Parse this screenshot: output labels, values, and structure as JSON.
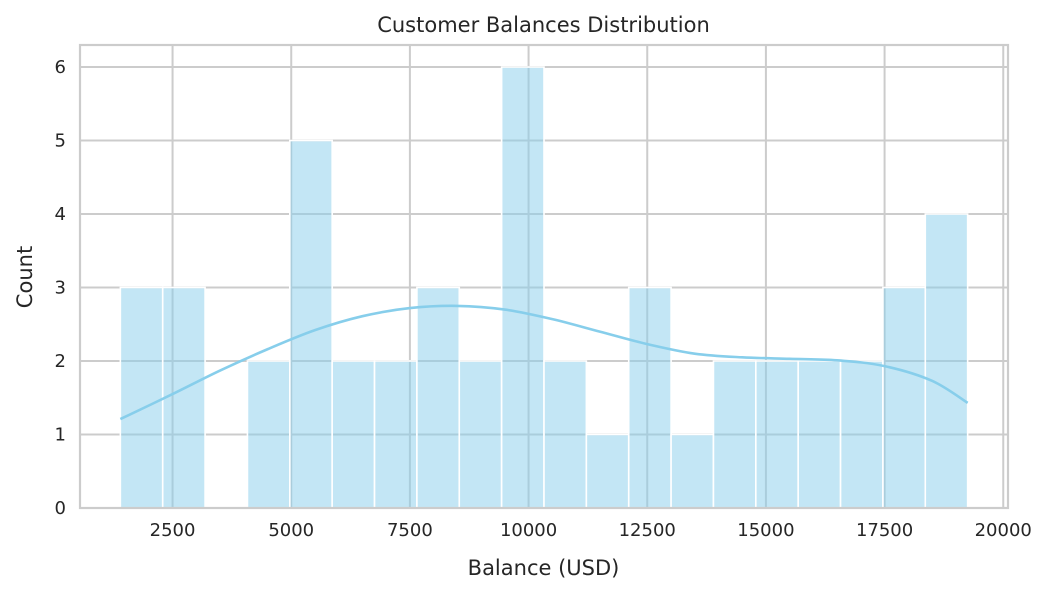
{
  "chart_data": {
    "type": "bar",
    "title": "Customer Balances Distribution",
    "xlabel": "Balance (USD)",
    "ylabel": "Count",
    "xlim": [
      550,
      20100
    ],
    "ylim": [
      0,
      6.3
    ],
    "x_ticks": [
      2500,
      5000,
      7500,
      10000,
      12500,
      15000,
      17500,
      20000
    ],
    "y_ticks": [
      0,
      1,
      2,
      3,
      4,
      5,
      6
    ],
    "grid": true,
    "bin_edges": [
      1400,
      2292.5,
      3185,
      4077.5,
      4970,
      5862.5,
      6755,
      7647.5,
      8540,
      9432.5,
      10325,
      11217.5,
      12110,
      13002.5,
      13895,
      14787.5,
      15680,
      16572.5,
      17465,
      18357.5,
      19250
    ],
    "counts": [
      3,
      3,
      0,
      2,
      5,
      2,
      2,
      3,
      2,
      6,
      2,
      1,
      3,
      1,
      2,
      2,
      2,
      2,
      3,
      4
    ],
    "kde": {
      "x": [
        1400,
        2500,
        3500,
        4500,
        5500,
        6500,
        7500,
        8500,
        9500,
        10500,
        11500,
        12500,
        13500,
        14500,
        15500,
        16500,
        17500,
        18500,
        19250
      ],
      "y": [
        1.21,
        1.55,
        1.87,
        2.16,
        2.42,
        2.61,
        2.72,
        2.75,
        2.7,
        2.57,
        2.4,
        2.23,
        2.1,
        2.05,
        2.03,
        2.01,
        1.93,
        1.73,
        1.43
      ]
    },
    "colors": {
      "bar": "#87ceeb",
      "bar_opacity": 0.5,
      "kde": "#87ceeb"
    }
  }
}
